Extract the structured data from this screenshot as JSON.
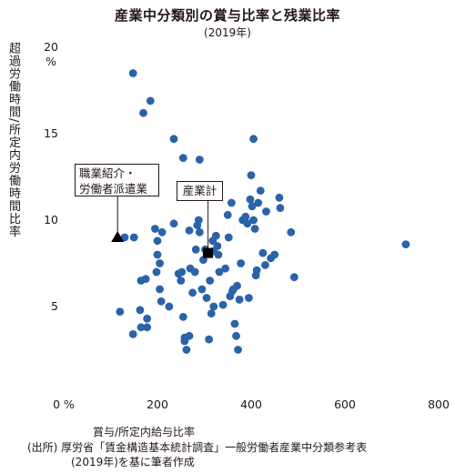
{
  "title": "産業中分類別の賞与比率と残業比率",
  "subtitle": "(2019年)",
  "source": {
    "line1": "(出所) 厚労省「賃金構造基本統計調査」一般労働者産業中分類参考表",
    "line2": "(2019年)を基に筆者作成"
  },
  "chart_data": {
    "type": "scatter",
    "xlabel": "賞与/所定内給与比率",
    "ylabel": "超過労働時間/所定内労働時間比率",
    "xlim": [
      0,
      800
    ],
    "ylim": [
      0,
      20
    ],
    "xticks": [
      0,
      200,
      400,
      600,
      800
    ],
    "yticks": [
      0,
      5,
      10,
      15,
      20
    ],
    "xtick_labels": [
      "0 %",
      "200",
      "400",
      "600",
      "800"
    ],
    "ytick_labels": [
      "",
      "5",
      "10",
      "15",
      "20"
    ],
    "y_unit_label": "%",
    "grid": false,
    "marker_color": "#2b63a8",
    "highlight_color": "#000000",
    "points": [
      [
        148,
        18.5
      ],
      [
        185,
        16.9
      ],
      [
        170,
        16.2
      ],
      [
        255,
        13.6
      ],
      [
        235,
        14.7
      ],
      [
        290,
        13.5
      ],
      [
        405,
        14.7
      ],
      [
        120,
        4.7
      ],
      [
        148,
        3.4
      ],
      [
        163,
        4.8
      ],
      [
        178,
        3.8
      ],
      [
        165,
        3.8
      ],
      [
        178,
        4.3
      ],
      [
        130,
        9.0
      ],
      [
        150,
        9.0
      ],
      [
        165,
        6.5
      ],
      [
        175,
        6.6
      ],
      [
        195,
        9.5
      ],
      [
        200,
        8.8
      ],
      [
        200,
        8.0
      ],
      [
        205,
        7.5
      ],
      [
        198,
        7.0
      ],
      [
        205,
        6.0
      ],
      [
        208,
        5.3
      ],
      [
        210,
        9.3
      ],
      [
        225,
        5.0
      ],
      [
        235,
        9.8
      ],
      [
        245,
        6.9
      ],
      [
        250,
        6.5
      ],
      [
        252,
        7.0
      ],
      [
        255,
        4.4
      ],
      [
        258,
        3.0
      ],
      [
        258,
        3.2
      ],
      [
        262,
        2.5
      ],
      [
        268,
        3.3
      ],
      [
        270,
        7.2
      ],
      [
        268,
        9.4
      ],
      [
        275,
        5.8
      ],
      [
        280,
        7.0
      ],
      [
        282,
        8.3
      ],
      [
        285,
        9.7
      ],
      [
        288,
        10.0
      ],
      [
        290,
        9.3
      ],
      [
        295,
        6.0
      ],
      [
        298,
        7.7
      ],
      [
        302,
        8.3
      ],
      [
        305,
        5.5
      ],
      [
        310,
        3.1
      ],
      [
        312,
        6.5
      ],
      [
        315,
        4.6
      ],
      [
        318,
        8.8
      ],
      [
        320,
        8.2
      ],
      [
        320,
        5.0
      ],
      [
        325,
        9.1
      ],
      [
        328,
        8.5
      ],
      [
        330,
        8.0
      ],
      [
        332,
        7.0
      ],
      [
        340,
        5.1
      ],
      [
        345,
        7.2
      ],
      [
        350,
        10.3
      ],
      [
        352,
        9.0
      ],
      [
        355,
        5.6
      ],
      [
        358,
        11.0
      ],
      [
        360,
        5.9
      ],
      [
        362,
        6.0
      ],
      [
        365,
        4.0
      ],
      [
        368,
        3.3
      ],
      [
        370,
        6.2
      ],
      [
        372,
        2.5
      ],
      [
        375,
        5.4
      ],
      [
        378,
        7.5
      ],
      [
        382,
        10.0
      ],
      [
        388,
        10.2
      ],
      [
        392,
        9.8
      ],
      [
        395,
        5.5
      ],
      [
        398,
        11.2
      ],
      [
        400,
        12.6
      ],
      [
        402,
        10.8
      ],
      [
        405,
        10.0
      ],
      [
        408,
        9.5
      ],
      [
        410,
        6.8
      ],
      [
        412,
        7.1
      ],
      [
        415,
        11.0
      ],
      [
        420,
        11.7
      ],
      [
        425,
        8.1
      ],
      [
        430,
        7.4
      ],
      [
        432,
        10.5
      ],
      [
        442,
        7.8
      ],
      [
        450,
        8.0
      ],
      [
        460,
        11.3
      ],
      [
        462,
        10.7
      ],
      [
        485,
        9.3
      ],
      [
        492,
        6.7
      ],
      [
        730,
        8.6
      ]
    ],
    "highlights": [
      {
        "marker": "triangle",
        "x": 115,
        "y": 9.0,
        "label_lines": [
          "職業紹介・",
          "労働者派遣業"
        ]
      },
      {
        "marker": "square",
        "x": 308,
        "y": 8.1,
        "label_lines": [
          "産業計"
        ]
      }
    ]
  }
}
